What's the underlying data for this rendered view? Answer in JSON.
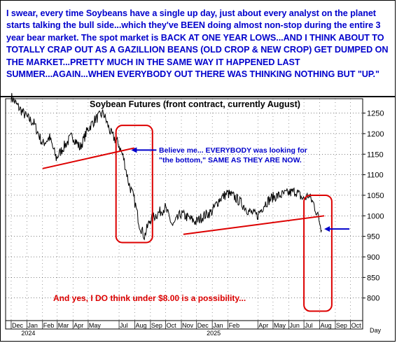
{
  "commentary": "I swear, every time Soybeans have a single up day, just about every analyst on the planet starts talking the bull side...which they've BEEN doing almost non-stop during the entire 3 year bear market. The spot market is BACK AT ONE YEAR LOWS...AND I THINK ABOUT TO TOTALLY CRAP OUT AS A GAZILLION BEANS (OLD CROP & NEW CROP) GET DUMPED ON THE MARKET...PRETTY MUCH IN THE SAME WAY IT HAPPENED LAST SUMMER...AGAIN...WHEN EVERYBODY OUT THERE WAS THINKING NOTHING BUT \"UP.\"",
  "colors": {
    "commentary_text": "#0000cc",
    "annotation_blue": "#0000cc",
    "annotation_red": "#dd0000",
    "price_line": "#000000",
    "grid": "#000000"
  },
  "chart_data": {
    "type": "line",
    "title": "Soybean Futures (front contract, currently August)",
    "xlabel": "Day",
    "ylabel": "",
    "ylim": [
      745,
      1285
    ],
    "yticks": [
      800,
      850,
      900,
      950,
      1000,
      1050,
      1100,
      1150,
      1200,
      1250
    ],
    "grid": "dotted",
    "y_axis_side": "right",
    "month_labels": [
      "Dec",
      "Jan",
      "Feb",
      "Mar",
      "Apr",
      "May",
      "Jul",
      "Aug",
      "Sep",
      "Oct",
      "Nov",
      "Dec",
      "Jan",
      "Feb",
      "Apr",
      "May",
      "Jun",
      "Jul",
      "Aug",
      "Sep",
      "Oct"
    ],
    "year_labels": [
      "2024",
      "2025"
    ],
    "series": [
      {
        "x": [
          "2023-12-01",
          "2023-12-15",
          "2024-01-01",
          "2024-01-15",
          "2024-02-01",
          "2024-02-15",
          "2024-02-28",
          "2024-03-15",
          "2024-03-31",
          "2024-04-15",
          "2024-04-30",
          "2024-05-15",
          "2024-05-31",
          "2024-06-15",
          "2024-06-30",
          "2024-07-10",
          "2024-07-20",
          "2024-07-31",
          "2024-08-10",
          "2024-08-20",
          "2024-08-31",
          "2024-09-15",
          "2024-09-30",
          "2024-10-15",
          "2024-10-31",
          "2024-11-15",
          "2024-11-30",
          "2024-12-15",
          "2024-12-31",
          "2025-01-15",
          "2025-01-31",
          "2025-02-15",
          "2025-02-28",
          "2025-03-15",
          "2025-03-31",
          "2025-04-15",
          "2025-04-30",
          "2025-05-15",
          "2025-05-31",
          "2025-06-15",
          "2025-06-30",
          "2025-07-10",
          "2025-07-20",
          "2025-07-31",
          "2025-08-05"
        ],
        "values": [
          1290,
          1265,
          1240,
          1225,
          1175,
          1190,
          1140,
          1170,
          1195,
          1165,
          1210,
          1235,
          1250,
          1200,
          1175,
          1140,
          1080,
          1040,
          980,
          950,
          990,
          1005,
          1020,
          975,
          1005,
          995,
          985,
          1000,
          1010,
          1040,
          1055,
          1045,
          1030,
          1010,
          1000,
          1030,
          1045,
          1050,
          1055,
          1060,
          1040,
          1050,
          1030,
          990,
          965
        ]
      }
    ],
    "annotations": [
      {
        "text": "Believe me... EVERYBODY was looking for",
        "color": "#0000cc"
      },
      {
        "text": "\"the bottom,\" SAME AS THEY ARE NOW.",
        "color": "#0000cc"
      },
      {
        "text": "And yes, I DO think under $8.00 is a possibility...",
        "color": "#dd0000"
      }
    ],
    "trendlines": [
      {
        "from": [
          "2024-02-01",
          1115
        ],
        "to": [
          "2024-07-31",
          1165
        ]
      },
      {
        "from": [
          "2024-11-05",
          955
        ],
        "to": [
          "2025-08-10",
          1000
        ]
      }
    ],
    "highlight_boxes": [
      {
        "x_range": [
          "2024-06-25",
          "2024-09-05"
        ],
        "y_range": [
          935,
          1220
        ]
      },
      {
        "x_range": [
          "2025-07-01",
          "2025-08-25"
        ],
        "y_range": [
          768,
          1050
        ]
      }
    ],
    "arrows": [
      {
        "points_to": [
          "2024-07-25",
          1160
        ],
        "direction": "left"
      },
      {
        "points_to": [
          "2025-08-10",
          968
        ],
        "direction": "left"
      }
    ]
  }
}
